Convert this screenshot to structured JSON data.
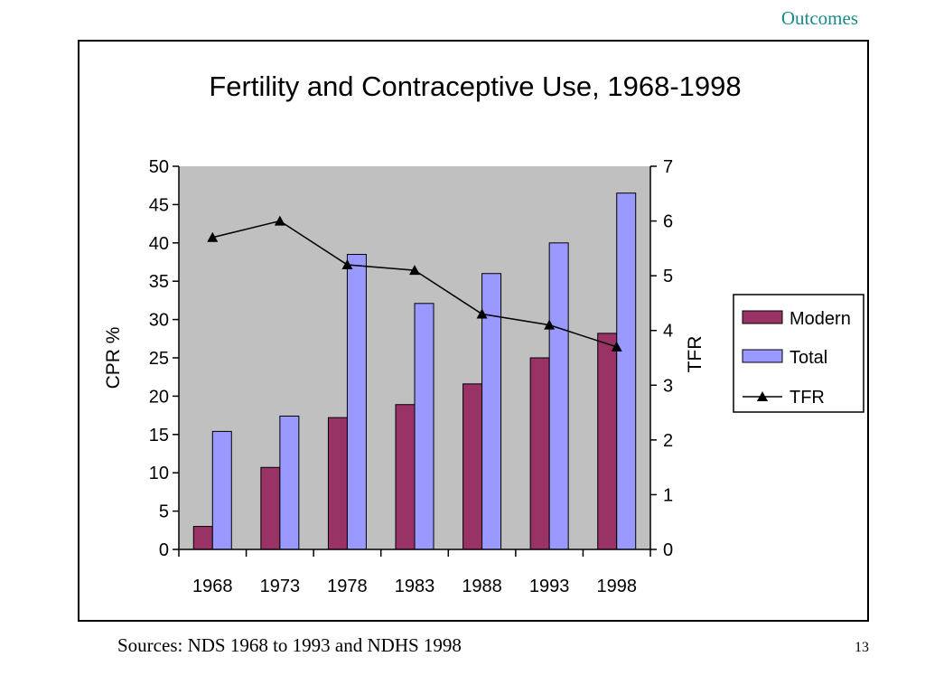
{
  "header": {
    "section_label": "Outcomes"
  },
  "footer": {
    "sources": "Sources: NDS 1968 to 1993 and NDHS 1998",
    "page_number": "13"
  },
  "colors": {
    "modern": "#993366",
    "total": "#9999ff",
    "tfr": "#000000",
    "plot_bg": "#c0c0c0",
    "header": "#1a8a8a"
  },
  "chart_data": {
    "type": "bar",
    "title": "Fertility and Contraceptive Use, 1968-1998",
    "categories": [
      "1968",
      "1973",
      "1978",
      "1983",
      "1988",
      "1993",
      "1998"
    ],
    "ylabel": "CPR %",
    "y2label": "TFR",
    "ylim": [
      0,
      50
    ],
    "y2lim": [
      0,
      7
    ],
    "yticks": [
      "0",
      "5",
      "10",
      "15",
      "20",
      "25",
      "30",
      "35",
      "40",
      "45",
      "50"
    ],
    "y2ticks": [
      "0",
      "1",
      "2",
      "3",
      "4",
      "5",
      "6",
      "7"
    ],
    "series": [
      {
        "name": "Modern",
        "type": "bar",
        "axis": "left",
        "values": [
          3,
          10.7,
          17.2,
          18.9,
          21.6,
          25,
          28.2
        ]
      },
      {
        "name": "Total",
        "type": "bar",
        "axis": "left",
        "values": [
          15.4,
          17.4,
          38.5,
          32.1,
          36,
          40,
          46.5
        ]
      },
      {
        "name": "TFR",
        "type": "line",
        "axis": "right",
        "marker": "triangle",
        "values": [
          5.7,
          6,
          5.2,
          5.1,
          4.3,
          4.1,
          3.7
        ]
      }
    ],
    "legend_position": "right",
    "grid": false
  }
}
